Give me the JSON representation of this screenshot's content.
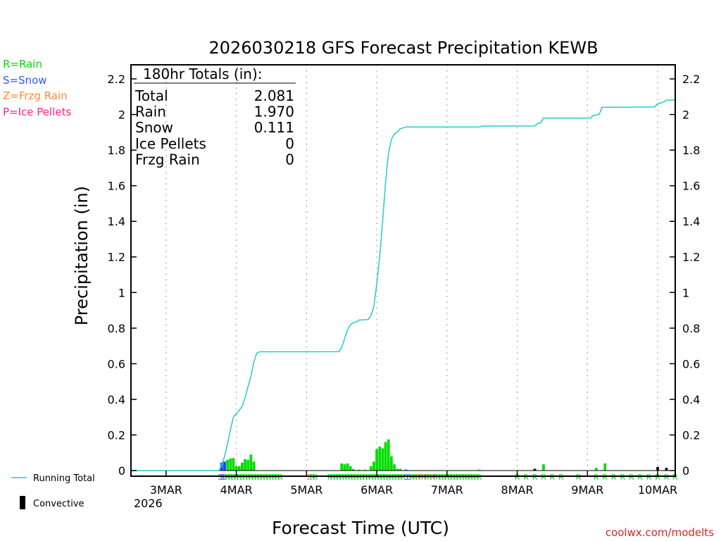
{
  "chart_data": {
    "type": "bar+line",
    "title": "2026030218 GFS Forecast Precipitation KEWB",
    "xlabel": "Forecast Time (UTC)",
    "ylabel": "Precipitation (in)",
    "ylim": [
      0,
      2.2
    ],
    "y_ticks": [
      0,
      0.2,
      0.4,
      0.6,
      0.8,
      1,
      1.2,
      1.4,
      1.6,
      1.8,
      2,
      2.2
    ],
    "y_tick_labels": [
      "0",
      "0.2",
      "0.4",
      "0.6",
      "0.8",
      "1",
      "1.2",
      "1.4",
      "1.6",
      "1.8",
      "2",
      "2.2"
    ],
    "x_hour_range": [
      -6,
      180
    ],
    "x_ticks": [
      {
        "hour": 6,
        "label": "3MAR"
      },
      {
        "hour": 30,
        "label": "4MAR"
      },
      {
        "hour": 54,
        "label": "5MAR"
      },
      {
        "hour": 78,
        "label": "6MAR"
      },
      {
        "hour": 102,
        "label": "7MAR"
      },
      {
        "hour": 126,
        "label": "8MAR"
      },
      {
        "hour": 150,
        "label": "9MAR"
      },
      {
        "hour": 174,
        "label": "10MAR"
      }
    ],
    "year_label": "2026",
    "totals_box": {
      "heading": "180hr Totals (in):",
      "rows": [
        {
          "label": "Total",
          "value": "2.081"
        },
        {
          "label": "Rain",
          "value": "1.970"
        },
        {
          "label": "Snow",
          "value": "0.111"
        },
        {
          "label": "Ice Pellets",
          "value": "0"
        },
        {
          "label": "Frzg Rain",
          "value": "0"
        }
      ]
    },
    "ptype_legend": [
      {
        "text": "R=Rain",
        "color": "#00dd00"
      },
      {
        "text": "S=Snow",
        "color": "#3355ff"
      },
      {
        "text": "Z=Frzg Rain",
        "color": "#ff8833"
      },
      {
        "text": "P=Ice Pellets",
        "color": "#ff2288"
      }
    ],
    "series_legend": {
      "running_total": "Running Total",
      "convective": "Convective"
    },
    "colors": {
      "running_total": "#22cccc",
      "rain": "#00dd00",
      "snow": "#1144ff",
      "convective": "#000000",
      "grid": "#aaaaaa",
      "axis": "#000000"
    },
    "running_total": [
      [
        -6,
        0
      ],
      [
        24,
        0
      ],
      [
        25,
        0.03
      ],
      [
        26,
        0.08
      ],
      [
        27,
        0.15
      ],
      [
        28,
        0.23
      ],
      [
        29,
        0.3
      ],
      [
        30,
        0.32
      ],
      [
        31,
        0.34
      ],
      [
        32,
        0.36
      ],
      [
        33,
        0.41
      ],
      [
        34,
        0.47
      ],
      [
        35,
        0.53
      ],
      [
        36,
        0.61
      ],
      [
        37,
        0.66
      ],
      [
        38,
        0.667
      ],
      [
        65,
        0.668
      ],
      [
        66,
        0.69
      ],
      [
        67,
        0.74
      ],
      [
        68,
        0.79
      ],
      [
        69,
        0.82
      ],
      [
        70,
        0.83
      ],
      [
        71,
        0.835
      ],
      [
        72,
        0.845
      ],
      [
        75,
        0.848
      ],
      [
        76,
        0.87
      ],
      [
        77,
        0.92
      ],
      [
        78,
        1.05
      ],
      [
        79,
        1.2
      ],
      [
        80,
        1.4
      ],
      [
        81,
        1.62
      ],
      [
        82,
        1.78
      ],
      [
        83,
        1.86
      ],
      [
        84,
        1.89
      ],
      [
        85,
        1.9
      ],
      [
        86,
        1.92
      ],
      [
        88,
        1.93
      ],
      [
        113,
        1.93
      ],
      [
        114,
        1.935
      ],
      [
        132,
        1.936
      ],
      [
        133,
        1.95
      ],
      [
        134,
        1.953
      ],
      [
        135,
        1.98
      ],
      [
        151,
        1.98
      ],
      [
        152,
        1.995
      ],
      [
        154,
        2.0
      ],
      [
        155,
        2.04
      ],
      [
        173,
        2.043
      ],
      [
        174,
        2.06
      ],
      [
        176,
        2.07
      ],
      [
        177,
        2.08
      ],
      [
        180,
        2.081
      ]
    ],
    "bars_6h_hourly": [
      {
        "hour": 25,
        "value": 0.045,
        "ptype": "snow"
      },
      {
        "hour": 26,
        "value": 0.05,
        "ptype": "snow"
      },
      {
        "hour": 27,
        "value": 0.06,
        "ptype": "rain"
      },
      {
        "hour": 28,
        "value": 0.068,
        "ptype": "rain"
      },
      {
        "hour": 29,
        "value": 0.07,
        "ptype": "rain"
      },
      {
        "hour": 30,
        "value": 0.025,
        "ptype": "rain"
      },
      {
        "hour": 31,
        "value": 0.025,
        "ptype": "rain"
      },
      {
        "hour": 32,
        "value": 0.045,
        "ptype": "rain"
      },
      {
        "hour": 33,
        "value": 0.065,
        "ptype": "rain"
      },
      {
        "hour": 34,
        "value": 0.06,
        "ptype": "rain"
      },
      {
        "hour": 35,
        "value": 0.09,
        "ptype": "rain"
      },
      {
        "hour": 36,
        "value": 0.05,
        "ptype": "rain"
      },
      {
        "hour": 66,
        "value": 0.04,
        "ptype": "rain"
      },
      {
        "hour": 67,
        "value": 0.035,
        "ptype": "rain"
      },
      {
        "hour": 68,
        "value": 0.04,
        "ptype": "rain"
      },
      {
        "hour": 69,
        "value": 0.025,
        "ptype": "rain"
      },
      {
        "hour": 70,
        "value": 0.008,
        "ptype": "rain"
      },
      {
        "hour": 72,
        "value": 0.005,
        "ptype": "rain"
      },
      {
        "hour": 74,
        "value": 0.005,
        "ptype": "rain"
      },
      {
        "hour": 76,
        "value": 0.025,
        "ptype": "rain"
      },
      {
        "hour": 77,
        "value": 0.05,
        "ptype": "rain"
      },
      {
        "hour": 78,
        "value": 0.12,
        "ptype": "rain"
      },
      {
        "hour": 79,
        "value": 0.135,
        "ptype": "rain"
      },
      {
        "hour": 80,
        "value": 0.125,
        "ptype": "rain"
      },
      {
        "hour": 81,
        "value": 0.16,
        "ptype": "rain"
      },
      {
        "hour": 82,
        "value": 0.175,
        "ptype": "rain"
      },
      {
        "hour": 83,
        "value": 0.08,
        "ptype": "rain"
      },
      {
        "hour": 84,
        "value": 0.035,
        "ptype": "rain"
      },
      {
        "hour": 85,
        "value": 0.01,
        "ptype": "rain"
      },
      {
        "hour": 86,
        "value": 0.01,
        "ptype": "rain"
      },
      {
        "hour": 88,
        "value": 0.005,
        "ptype": "snow"
      },
      {
        "hour": 113,
        "value": 0.005,
        "ptype": "rain"
      },
      {
        "hour": 132,
        "value": 0.01,
        "ptype": "rain",
        "convective": true
      },
      {
        "hour": 135,
        "value": 0.035,
        "ptype": "rain"
      },
      {
        "hour": 153,
        "value": 0.015,
        "ptype": "rain"
      },
      {
        "hour": 156,
        "value": 0.04,
        "ptype": "rain"
      },
      {
        "hour": 174,
        "value": 0.02,
        "ptype": "rain",
        "convective": true
      },
      {
        "hour": 177,
        "value": 0.015,
        "ptype": "rain",
        "convective": true
      }
    ],
    "ptype_markers": [
      {
        "hour": 24.5,
        "letter": "S",
        "color": "#3355ff"
      },
      {
        "hour": 25.2,
        "letter": "S",
        "color": "#3355ff"
      },
      {
        "hour": 26,
        "letter": "S",
        "color": "#3355ff"
      },
      {
        "hour": 27,
        "letter": "R",
        "color": "#00dd00"
      },
      {
        "hour": 28,
        "letter": "R",
        "color": "#00dd00"
      },
      {
        "hour": 29,
        "letter": "R",
        "color": "#00dd00"
      },
      {
        "hour": 30,
        "letter": "R",
        "color": "#00dd00"
      },
      {
        "hour": 31,
        "letter": "R",
        "color": "#00dd00"
      },
      {
        "hour": 32,
        "letter": "R",
        "color": "#00dd00"
      },
      {
        "hour": 33,
        "letter": "R",
        "color": "#00dd00"
      },
      {
        "hour": 34,
        "letter": "R",
        "color": "#00dd00"
      },
      {
        "hour": 35,
        "letter": "R",
        "color": "#00dd00"
      },
      {
        "hour": 36,
        "letter": "R",
        "color": "#00dd00"
      },
      {
        "hour": 37,
        "letter": "R",
        "color": "#00dd00"
      },
      {
        "hour": 38,
        "letter": "R",
        "color": "#00dd00"
      },
      {
        "hour": 39,
        "letter": "R",
        "color": "#00dd00"
      },
      {
        "hour": 40,
        "letter": "R",
        "color": "#00dd00"
      },
      {
        "hour": 41,
        "letter": "R",
        "color": "#00dd00"
      },
      {
        "hour": 42,
        "letter": "R",
        "color": "#00dd00"
      },
      {
        "hour": 43,
        "letter": "R",
        "color": "#00dd00"
      },
      {
        "hour": 44,
        "letter": "R",
        "color": "#00dd00"
      },
      {
        "hour": 45,
        "letter": "R",
        "color": "#00dd00"
      },
      {
        "hour": 55,
        "letter": "Z",
        "color": "#ff8833"
      },
      {
        "hour": 56,
        "letter": "R",
        "color": "#00dd00"
      },
      {
        "hour": 57,
        "letter": "R",
        "color": "#00dd00"
      },
      {
        "hour": 62,
        "letter": "R",
        "color": "#00dd00"
      },
      {
        "hour": 63,
        "letter": "R",
        "color": "#00dd00"
      },
      {
        "hour": 64,
        "letter": "R",
        "color": "#00dd00"
      },
      {
        "hour": 65,
        "letter": "R",
        "color": "#00dd00"
      },
      {
        "hour": 66,
        "letter": "R",
        "color": "#00dd00"
      },
      {
        "hour": 67,
        "letter": "R",
        "color": "#00dd00"
      },
      {
        "hour": 68,
        "letter": "R",
        "color": "#00dd00"
      },
      {
        "hour": 69,
        "letter": "R",
        "color": "#00dd00"
      },
      {
        "hour": 70,
        "letter": "R",
        "color": "#00dd00"
      },
      {
        "hour": 71,
        "letter": "R",
        "color": "#00dd00"
      },
      {
        "hour": 72,
        "letter": "R",
        "color": "#00dd00"
      },
      {
        "hour": 73,
        "letter": "R",
        "color": "#00dd00"
      },
      {
        "hour": 74,
        "letter": "R",
        "color": "#00dd00"
      },
      {
        "hour": 75,
        "letter": "R",
        "color": "#00dd00"
      },
      {
        "hour": 76,
        "letter": "R",
        "color": "#00dd00"
      },
      {
        "hour": 77,
        "letter": "R",
        "color": "#00dd00"
      },
      {
        "hour": 78,
        "letter": "R",
        "color": "#00dd00"
      },
      {
        "hour": 79,
        "letter": "R",
        "color": "#00dd00"
      },
      {
        "hour": 80,
        "letter": "R",
        "color": "#00dd00"
      },
      {
        "hour": 81,
        "letter": "R",
        "color": "#00dd00"
      },
      {
        "hour": 82,
        "letter": "R",
        "color": "#00dd00"
      },
      {
        "hour": 83,
        "letter": "R",
        "color": "#00dd00"
      },
      {
        "hour": 84,
        "letter": "R",
        "color": "#00dd00"
      },
      {
        "hour": 85,
        "letter": "R",
        "color": "#00dd00"
      },
      {
        "hour": 86,
        "letter": "R",
        "color": "#00dd00"
      },
      {
        "hour": 87,
        "letter": "R",
        "color": "#00dd00"
      },
      {
        "hour": 88,
        "letter": "S",
        "color": "#3355ff"
      },
      {
        "hour": 89,
        "letter": "S",
        "color": "#3355ff"
      },
      {
        "hour": 90,
        "letter": "R",
        "color": "#00dd00"
      },
      {
        "hour": 91,
        "letter": "R",
        "color": "#00dd00"
      },
      {
        "hour": 92,
        "letter": "R",
        "color": "#00dd00"
      },
      {
        "hour": 93,
        "letter": "P",
        "color": "#ff2288"
      },
      {
        "hour": 94,
        "letter": "R",
        "color": "#00dd00"
      },
      {
        "hour": 95,
        "letter": "P",
        "color": "#ff2288"
      },
      {
        "hour": 96,
        "letter": "R",
        "color": "#00dd00"
      },
      {
        "hour": 97,
        "letter": "R",
        "color": "#00dd00"
      },
      {
        "hour": 98,
        "letter": "P",
        "color": "#ff2288"
      },
      {
        "hour": 99,
        "letter": "R",
        "color": "#00dd00"
      },
      {
        "hour": 100,
        "letter": "R",
        "color": "#00dd00"
      },
      {
        "hour": 101,
        "letter": "R",
        "color": "#00dd00"
      },
      {
        "hour": 102,
        "letter": "R",
        "color": "#00dd00"
      },
      {
        "hour": 103,
        "letter": "R",
        "color": "#00dd00"
      },
      {
        "hour": 104,
        "letter": "R",
        "color": "#00dd00"
      },
      {
        "hour": 105,
        "letter": "R",
        "color": "#00dd00"
      },
      {
        "hour": 106,
        "letter": "R",
        "color": "#00dd00"
      },
      {
        "hour": 107,
        "letter": "R",
        "color": "#00dd00"
      },
      {
        "hour": 108,
        "letter": "R",
        "color": "#00dd00"
      },
      {
        "hour": 109,
        "letter": "R",
        "color": "#00dd00"
      },
      {
        "hour": 110,
        "letter": "R",
        "color": "#00dd00"
      },
      {
        "hour": 111,
        "letter": "R",
        "color": "#00dd00"
      },
      {
        "hour": 112,
        "letter": "R",
        "color": "#00dd00"
      },
      {
        "hour": 113,
        "letter": "R",
        "color": "#00dd00"
      },
      {
        "hour": 126,
        "letter": "R",
        "color": "#00dd00"
      },
      {
        "hour": 129,
        "letter": "R",
        "color": "#00dd00"
      },
      {
        "hour": 132,
        "letter": "R",
        "color": "#00dd00"
      },
      {
        "hour": 135,
        "letter": "R",
        "color": "#00dd00"
      },
      {
        "hour": 138,
        "letter": "R",
        "color": "#00dd00"
      },
      {
        "hour": 141,
        "letter": "R",
        "color": "#00dd00"
      },
      {
        "hour": 147,
        "letter": "R",
        "color": "#00dd00"
      },
      {
        "hour": 153,
        "letter": "R",
        "color": "#00dd00"
      },
      {
        "hour": 156,
        "letter": "R",
        "color": "#00dd00"
      },
      {
        "hour": 159,
        "letter": "R",
        "color": "#00dd00"
      },
      {
        "hour": 162,
        "letter": "R",
        "color": "#00dd00"
      },
      {
        "hour": 165,
        "letter": "R",
        "color": "#00dd00"
      },
      {
        "hour": 168,
        "letter": "R",
        "color": "#00dd00"
      },
      {
        "hour": 171,
        "letter": "R",
        "color": "#00dd00"
      },
      {
        "hour": 174,
        "letter": "R",
        "color": "#00dd00"
      },
      {
        "hour": 177,
        "letter": "R",
        "color": "#00dd00"
      },
      {
        "hour": 180,
        "letter": "R",
        "color": "#00dd00"
      }
    ]
  },
  "footer": {
    "credit": "coolwx.com/modelts"
  }
}
